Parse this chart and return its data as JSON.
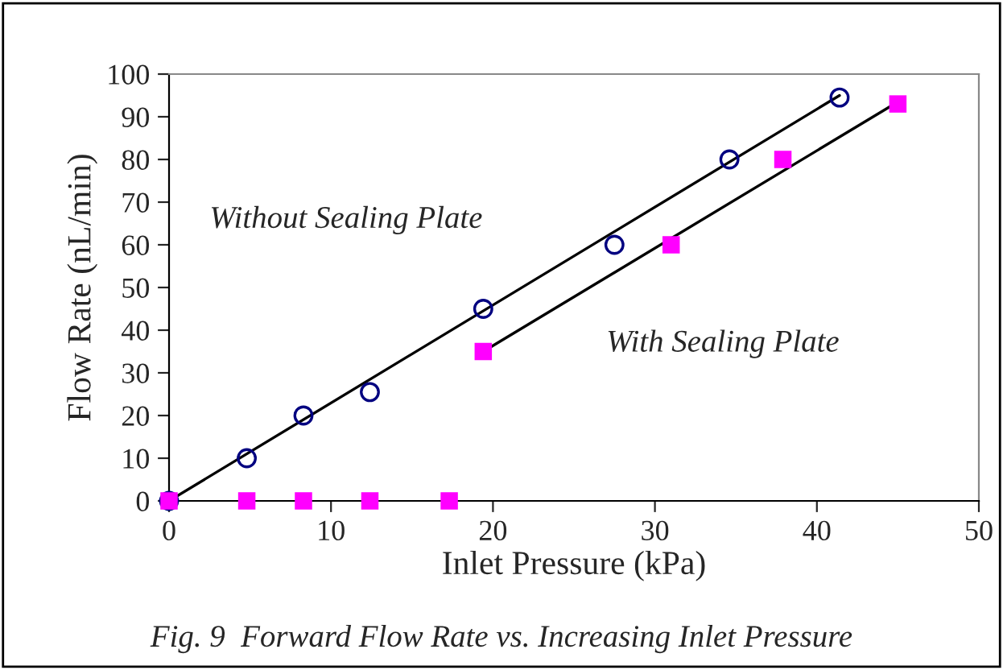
{
  "chart_data": {
    "type": "scatter",
    "xlabel": "Inlet Pressure (kPa)",
    "ylabel": "Flow Rate (nL/min)",
    "xlim": [
      0,
      50
    ],
    "xticks": [
      0,
      10,
      20,
      30,
      40,
      50
    ],
    "ylim": [
      0,
      100
    ],
    "yticks": [
      0,
      10,
      20,
      30,
      40,
      50,
      60,
      70,
      80,
      90,
      100
    ],
    "grid": false,
    "legend": false,
    "series": [
      {
        "type": "line",
        "color": "#000000",
        "marker": "none",
        "x": [
          0,
          41.4
        ],
        "values": [
          0,
          95
        ]
      },
      {
        "type": "line",
        "color": "#000000",
        "marker": "none",
        "x": [
          19.4,
          45
        ],
        "values": [
          35,
          93.5
        ]
      },
      {
        "color": "#000080",
        "marker": "circle",
        "x": [
          0,
          4.8,
          8.3,
          12.4,
          19.4,
          27.5,
          34.6,
          41.4
        ],
        "values": [
          0,
          10,
          20,
          25.5,
          45,
          60,
          80,
          94.5
        ]
      },
      {
        "color": "#ff00ff",
        "marker": "square",
        "x": [
          0,
          4.8,
          8.3,
          12.4,
          17.3,
          19.4,
          31,
          37.9,
          45
        ],
        "values": [
          0,
          0,
          0,
          0,
          0,
          35,
          60,
          80,
          93
        ]
      }
    ],
    "annotations": [
      "Without Sealing Plate",
      "With Sealing Plate",
      "Fig. 9  Forward Flow Rate vs. Increasing Inlet Pressure"
    ]
  }
}
